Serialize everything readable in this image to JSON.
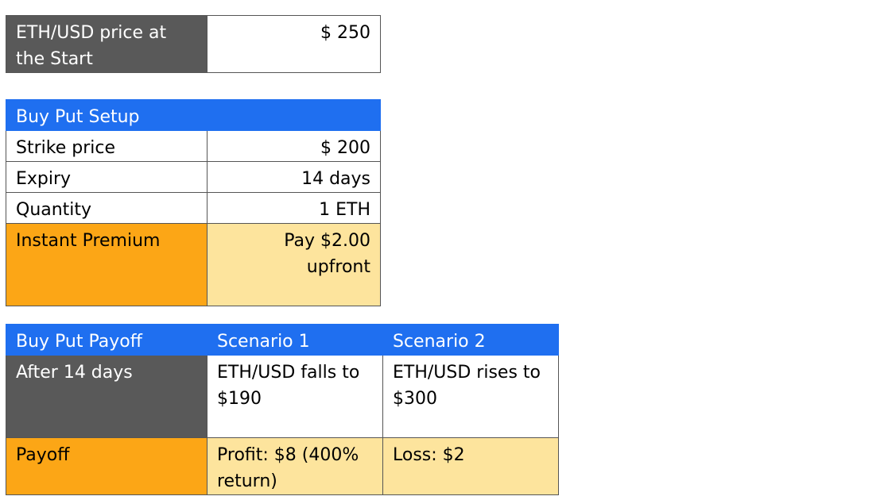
{
  "start": {
    "label": "ETH/USD price at the Start",
    "value": "$ 250"
  },
  "setup": {
    "header": "Buy Put Setup",
    "rows": [
      {
        "label": "Strike price",
        "value": "$ 200"
      },
      {
        "label": "Expiry",
        "value": "14 days"
      },
      {
        "label": "Quantity",
        "value": "1 ETH"
      }
    ],
    "premium": {
      "label": "Instant Premium",
      "value": "Pay $2.00 upfront"
    }
  },
  "payoff": {
    "headers": [
      "Buy Put Payoff",
      "Scenario 1",
      "Scenario 2"
    ],
    "after": {
      "label": "After 14 days",
      "s1": "ETH/USD falls to $190",
      "s2": "ETH/USD rises to $300"
    },
    "result": {
      "label": "Payoff",
      "s1": "Profit: $8 (400% return)",
      "s2": "Loss: $2"
    }
  }
}
